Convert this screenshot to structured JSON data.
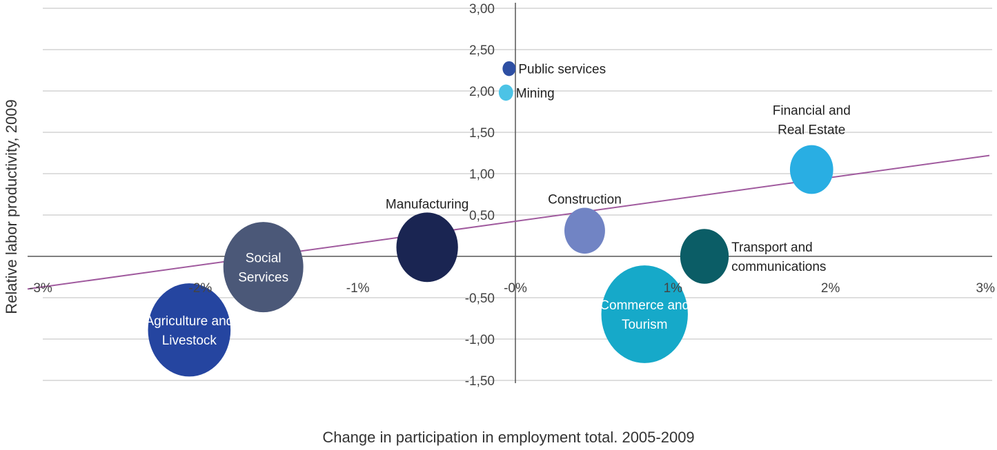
{
  "chart_data": {
    "type": "scatter",
    "subtype": "bubble",
    "title": "",
    "xlabel": "Change in participation in employment total. 2005-2009",
    "ylabel": "Relative labor productivity, 2009",
    "xlim": [
      -3,
      3
    ],
    "ylim": [
      -1.5,
      3.0
    ],
    "x_ticks": [
      -3,
      -2,
      -1,
      0,
      1,
      2,
      3
    ],
    "x_tick_labels": [
      "-3%",
      "-2%",
      "-1%",
      "-0%",
      "1%",
      "2%",
      "3%"
    ],
    "y_ticks": [
      3.0,
      2.5,
      2.0,
      1.5,
      1.0,
      0.5,
      -0.5,
      -1.0,
      -1.5
    ],
    "y_tick_labels": [
      "3,00",
      "2,50",
      "2,00",
      "1,50",
      "1,00",
      "0,50",
      "-0,50",
      "-1,00",
      "-1,50"
    ],
    "grid": "horizontal",
    "points": [
      {
        "label": "Public services",
        "x": -0.04,
        "y": 2.27,
        "size": 1,
        "color": "#2e4fa3",
        "label_pos": "right"
      },
      {
        "label": "Mining",
        "x": -0.06,
        "y": 1.98,
        "size": 1.1,
        "color": "#4cc3e6",
        "label_pos": "right"
      },
      {
        "label": "Financial and Real Estate",
        "x": 1.88,
        "y": 1.05,
        "size": 3.3,
        "color": "#29aee3",
        "label_pos": "above"
      },
      {
        "label": "Construction",
        "x": 0.44,
        "y": 0.31,
        "size": 3.1,
        "color": "#7184c4",
        "label_pos": "above"
      },
      {
        "label": "Manufacturing",
        "x": -0.56,
        "y": 0.11,
        "size": 4.7,
        "color": "#1a2552",
        "label_pos": "above"
      },
      {
        "label": "Transport and communications",
        "x": 1.2,
        "y": 0.0,
        "size": 3.7,
        "color": "#0b5d66",
        "label_pos": "right"
      },
      {
        "label": "Social Services",
        "x": -1.6,
        "y": -0.13,
        "size": 6.1,
        "color": "#4b5878",
        "label_pos": "inside"
      },
      {
        "label": "Commerce and Tourism",
        "x": 0.82,
        "y": -0.7,
        "size": 6.6,
        "color": "#16a9c9",
        "label_pos": "inside"
      },
      {
        "label": "Agriculture and Livestock",
        "x": -2.07,
        "y": -0.89,
        "size": 6.3,
        "color": "#2545a0",
        "label_pos": "inside"
      }
    ],
    "trendline": {
      "type": "linear",
      "from": [
        -3,
        -0.37
      ],
      "to": [
        3,
        1.22
      ],
      "color": "#a05a9e"
    }
  }
}
